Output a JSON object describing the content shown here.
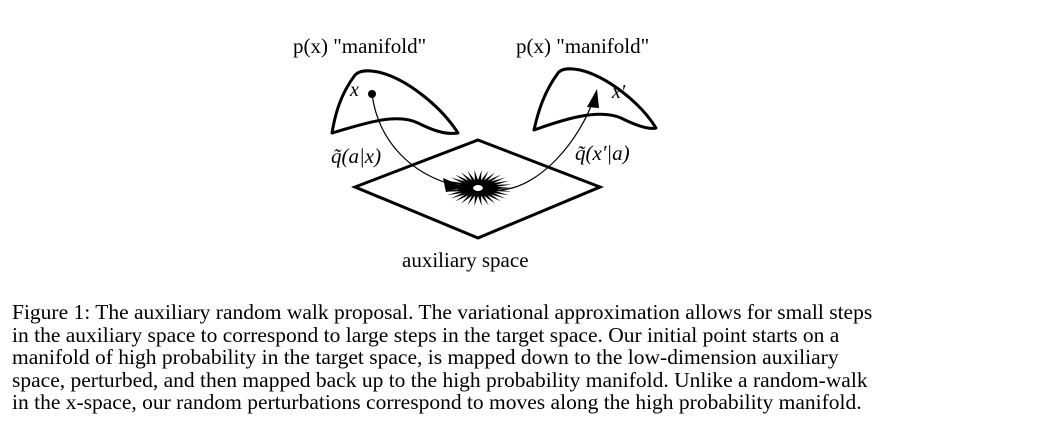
{
  "figure": {
    "left_manifold_label": "p(x) \"manifold\"",
    "right_manifold_label": "p(x) \"manifold\"",
    "left_point_label": "x",
    "right_point_label": "x′",
    "left_map_label": "q̃(a|x)",
    "right_map_label": "q̃(x′|a)",
    "space_label": "auxiliary space"
  },
  "caption": {
    "lines": [
      "Figure 1: The auxiliary random walk proposal. The variational approximation allows for small steps",
      "in the auxiliary space to correspond to large steps in the target space. Our initial point starts on a",
      "manifold of high probability in the target space, is mapped down to the low-dimension auxiliary",
      "space, perturbed, and then mapped back up to the high probability manifold. Unlike a random-walk",
      "in the x-space, our random perturbations correspond to moves along the high probability manifold."
    ]
  }
}
